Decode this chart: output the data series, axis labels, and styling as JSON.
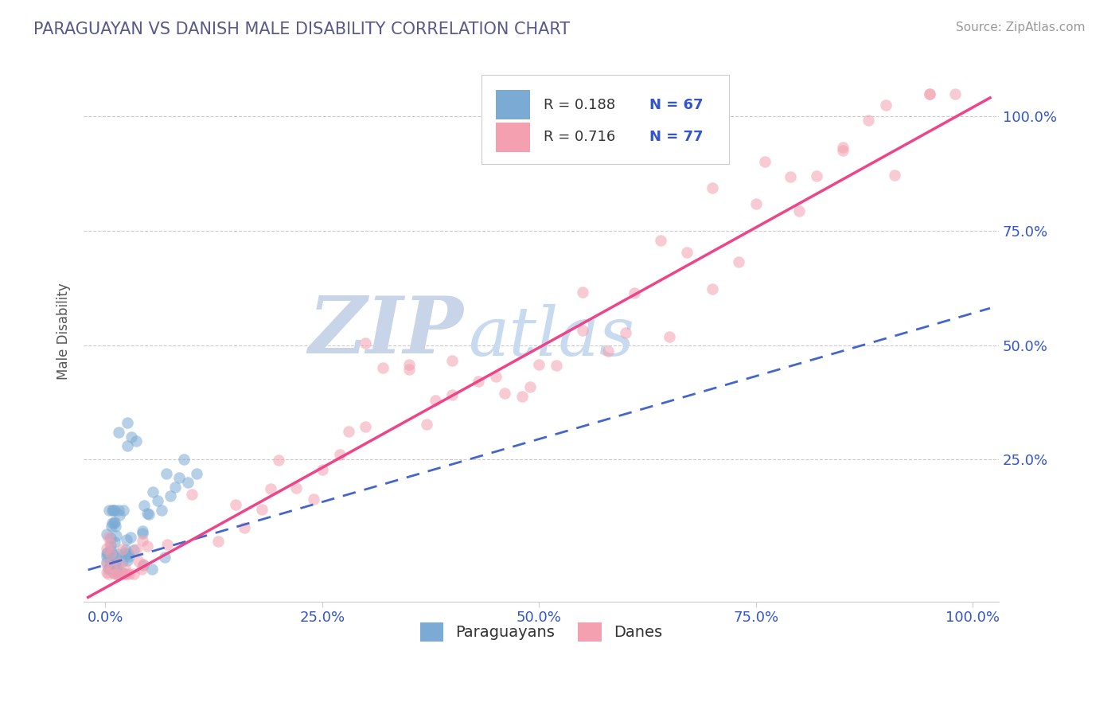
{
  "title": "PARAGUAYAN VS DANISH MALE DISABILITY CORRELATION CHART",
  "source": "Source: ZipAtlas.com",
  "ylabel": "Male Disability",
  "title_color": "#5a5a8a",
  "source_color": "#999999",
  "background_color": "#ffffff",
  "plot_bg_color": "#ffffff",
  "grid_color": "#cccccc",
  "watermark_zip": "ZIP",
  "watermark_atlas": "atlas",
  "watermark_zip_color": "#c8d4e8",
  "watermark_atlas_color": "#c8daf0",
  "legend_r1": "R = 0.188",
  "legend_n1": "N = 67",
  "legend_r2": "R = 0.716",
  "legend_n2": "N = 77",
  "legend_rn_color": "#3355cc",
  "scatter_blue_color": "#7baad4",
  "scatter_pink_color": "#f4a0b0",
  "line_blue_color": "#4466cc",
  "line_pink_color": "#ee4488",
  "xtick_labels": [
    "0.0%",
    "25.0%",
    "50.0%",
    "75.0%",
    "100.0%"
  ],
  "xtick_values": [
    0.0,
    0.25,
    0.5,
    0.75,
    1.0
  ],
  "ytick_labels": [
    "25.0%",
    "50.0%",
    "75.0%",
    "100.0%"
  ],
  "ytick_values": [
    0.25,
    0.5,
    0.75,
    1.0
  ],
  "tick_color": "#3355cc",
  "legend_label1": "Paraguayans",
  "legend_label2": "Danes"
}
